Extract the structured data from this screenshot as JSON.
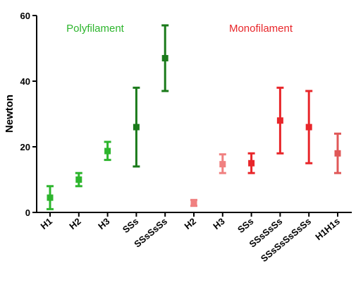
{
  "chart_data": {
    "type": "scatter",
    "title": "",
    "xlabel": "",
    "ylabel": "Newton",
    "ylim": [
      0,
      60
    ],
    "yticks": [
      0,
      20,
      40,
      60
    ],
    "grid": false,
    "annotations": [
      {
        "text": "Polyfilament",
        "color": "#2db52d"
      },
      {
        "text": "Monofilament",
        "color": "#e8262a"
      }
    ],
    "categories": [
      "H1",
      "H2",
      "H3",
      "SSs",
      "SSsSsSs",
      "H2",
      "H3",
      "SSs",
      "SSsSsSs",
      "SSsSsSsSsSs",
      "H1H1s"
    ],
    "points": [
      {
        "label": "H1",
        "mean": 4.5,
        "low": 1,
        "high": 8,
        "color": "#2db52d"
      },
      {
        "label": "H2",
        "mean": 10,
        "low": 8,
        "high": 12,
        "color": "#2db52d"
      },
      {
        "label": "H3",
        "mean": 18.7,
        "low": 16,
        "high": 21.5,
        "color": "#2db52d"
      },
      {
        "label": "SSs",
        "mean": 26,
        "low": 14,
        "high": 38,
        "color": "#1a7a1a"
      },
      {
        "label": "SSsSsSs",
        "mean": 47,
        "low": 37,
        "high": 57,
        "color": "#1a7a1a"
      },
      {
        "label": "H2",
        "mean": 2.8,
        "low": 2,
        "high": 3.8,
        "color": "#f08080"
      },
      {
        "label": "H3",
        "mean": 14.7,
        "low": 12,
        "high": 17.7,
        "color": "#f08080"
      },
      {
        "label": "SSs",
        "mean": 15,
        "low": 12,
        "high": 18,
        "color": "#e8262a"
      },
      {
        "label": "SSsSsSs",
        "mean": 28,
        "low": 18,
        "high": 38,
        "color": "#e8262a"
      },
      {
        "label": "SSsSsSsSsSs",
        "mean": 26,
        "low": 15,
        "high": 37,
        "color": "#e8262a"
      },
      {
        "label": "H1H1s",
        "mean": 18,
        "low": 12,
        "high": 24,
        "color": "#e05858"
      }
    ]
  }
}
